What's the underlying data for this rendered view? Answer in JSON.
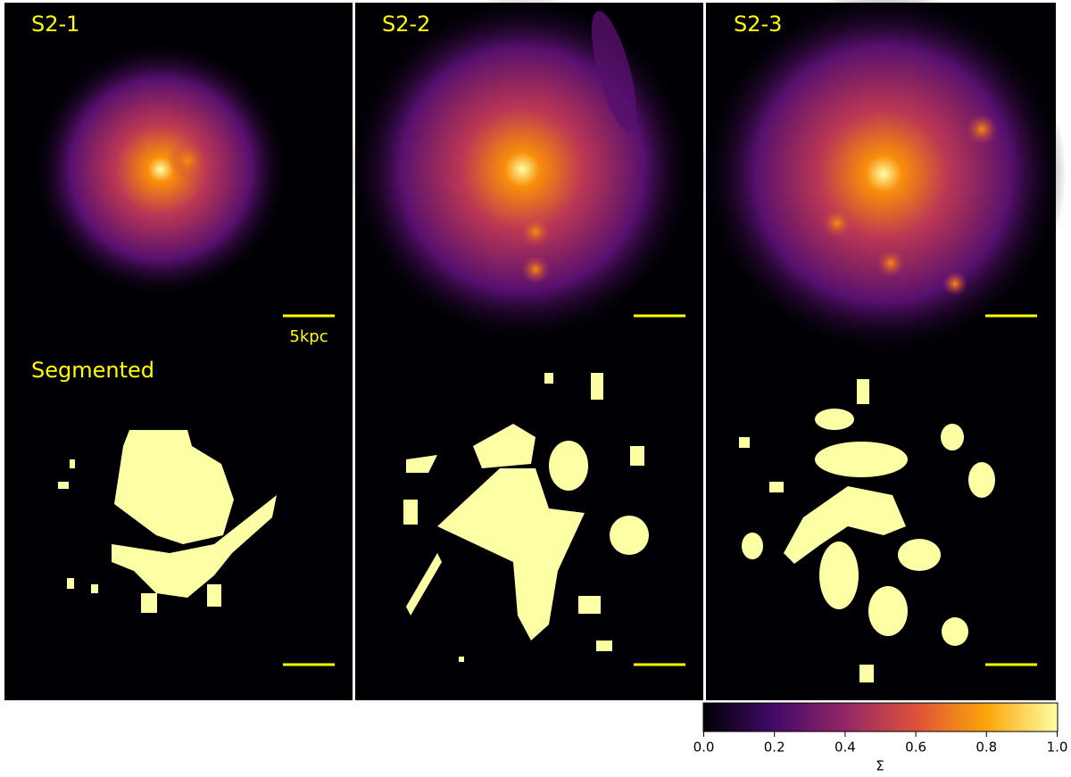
{
  "chart_data": {
    "type": "image",
    "panels": [
      {
        "label": "S2-1"
      },
      {
        "label": "S2-2"
      },
      {
        "label": "S2-3"
      }
    ],
    "segmented_label": "Segmented",
    "scalebar_label": "5kpc",
    "colorbar": {
      "label": "Σ",
      "lim": [
        0,
        1
      ],
      "ticks": [
        {
          "value": 0,
          "label": "0.0"
        },
        0.2,
        0.4,
        0.6,
        0.8,
        {
          "value": 1,
          "label": "1.0"
        }
      ]
    }
  }
}
